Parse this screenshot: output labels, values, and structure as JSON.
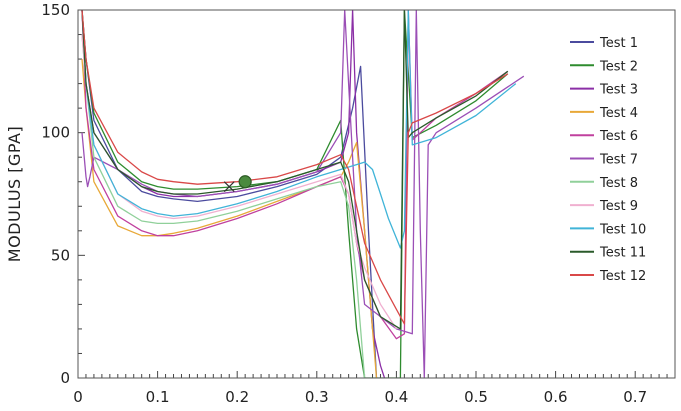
{
  "chart_data": {
    "type": "line",
    "title": "",
    "xlabel": "",
    "ylabel": "MODULUS [GPA]",
    "xlim": [
      0,
      0.75
    ],
    "ylim": [
      0,
      150
    ],
    "xticks": [
      "0",
      "0.1",
      "0.2",
      "0.3",
      "0.4",
      "0.5",
      "0.6",
      "0.7"
    ],
    "yticks": [
      "0",
      "50",
      "100",
      "150"
    ],
    "legend_position": "top-right",
    "marker": {
      "x": 0.21,
      "y": 80,
      "color": "#4a8a3e"
    },
    "cross_marker": {
      "x": 0.19,
      "y": 78
    },
    "series": [
      {
        "name": "Test 1",
        "color": "#4b4b9e",
        "x": [
          0.005,
          0.01,
          0.02,
          0.05,
          0.08,
          0.1,
          0.12,
          0.15,
          0.2,
          0.25,
          0.3,
          0.33,
          0.345,
          0.355,
          0.365,
          0.375
        ],
        "y": [
          150,
          130,
          105,
          85,
          76,
          74,
          73,
          72,
          74,
          78,
          83,
          90,
          110,
          127,
          60,
          0
        ]
      },
      {
        "name": "Test 2",
        "color": "#2e8b2e",
        "x": [
          0.005,
          0.01,
          0.02,
          0.05,
          0.08,
          0.1,
          0.12,
          0.15,
          0.2,
          0.25,
          0.3,
          0.33,
          0.34,
          0.35,
          0.36,
          0.405,
          0.41,
          0.42,
          0.45,
          0.5,
          0.54
        ],
        "y": [
          150,
          130,
          108,
          88,
          80,
          78,
          77,
          77,
          78,
          80,
          85,
          105,
          60,
          20,
          0,
          0,
          150,
          98,
          103,
          113,
          124
        ]
      },
      {
        "name": "Test 3",
        "color": "#8b2fa6",
        "x": [
          0.005,
          0.01,
          0.02,
          0.05,
          0.08,
          0.1,
          0.12,
          0.15,
          0.2,
          0.25,
          0.3,
          0.33,
          0.34,
          0.345,
          0.35,
          0.36,
          0.37,
          0.38,
          0.385
        ],
        "y": [
          150,
          120,
          100,
          85,
          78,
          75,
          74,
          74,
          76,
          79,
          84,
          88,
          100,
          150,
          100,
          60,
          20,
          5,
          0
        ]
      },
      {
        "name": "Test 4",
        "color": "#e8a838",
        "x": [
          0.005,
          0.01,
          0.02,
          0.05,
          0.08,
          0.1,
          0.12,
          0.15,
          0.2,
          0.25,
          0.3,
          0.33,
          0.34,
          0.35,
          0.36,
          0.37,
          0.375
        ],
        "y": [
          130,
          110,
          80,
          62,
          58,
          58,
          59,
          61,
          66,
          72,
          78,
          82,
          88,
          96,
          60,
          20,
          0
        ]
      },
      {
        "name": "Test 6",
        "color": "#c0409e",
        "x": [
          0.005,
          0.01,
          0.02,
          0.05,
          0.08,
          0.1,
          0.12,
          0.15,
          0.2,
          0.25,
          0.3,
          0.33,
          0.34,
          0.35,
          0.36,
          0.38,
          0.4,
          0.41,
          0.415,
          0.42,
          0.43,
          0.45,
          0.5,
          0.54
        ],
        "y": [
          150,
          110,
          85,
          66,
          60,
          58,
          58,
          60,
          65,
          71,
          78,
          82,
          75,
          55,
          40,
          25,
          16,
          18,
          150,
          97,
          100,
          106,
          116,
          125
        ]
      },
      {
        "name": "Test 7",
        "color": "#9b4fb6",
        "x": [
          0.005,
          0.01,
          0.012,
          0.015,
          0.02,
          0.05,
          0.08,
          0.1,
          0.12,
          0.15,
          0.2,
          0.25,
          0.3,
          0.33,
          0.335,
          0.34,
          0.345,
          0.35,
          0.36,
          0.4,
          0.42,
          0.425,
          0.43,
          0.435,
          0.44,
          0.45,
          0.5,
          0.56
        ],
        "y": [
          100,
          82,
          78,
          82,
          90,
          85,
          79,
          76,
          75,
          74,
          76,
          79,
          84,
          100,
          150,
          120,
          90,
          60,
          30,
          20,
          18,
          150,
          60,
          0,
          95,
          100,
          110,
          123
        ]
      },
      {
        "name": "Test 8",
        "color": "#90d09a",
        "x": [
          0.005,
          0.01,
          0.02,
          0.05,
          0.08,
          0.1,
          0.12,
          0.15,
          0.2,
          0.25,
          0.3,
          0.33,
          0.34,
          0.35,
          0.36
        ],
        "y": [
          140,
          120,
          90,
          70,
          64,
          63,
          63,
          64,
          68,
          73,
          78,
          80,
          70,
          40,
          0
        ]
      },
      {
        "name": "Test 9",
        "color": "#f0b0d0",
        "x": [
          0.005,
          0.01,
          0.02,
          0.05,
          0.08,
          0.1,
          0.12,
          0.15,
          0.2,
          0.25,
          0.3,
          0.33,
          0.34,
          0.35,
          0.36,
          0.38,
          0.4
        ],
        "y": [
          140,
          120,
          95,
          75,
          68,
          66,
          65,
          66,
          70,
          75,
          80,
          83,
          75,
          55,
          45,
          30,
          20
        ]
      },
      {
        "name": "Test 10",
        "color": "#40b4d8",
        "x": [
          0.005,
          0.01,
          0.02,
          0.05,
          0.08,
          0.1,
          0.12,
          0.15,
          0.2,
          0.25,
          0.3,
          0.35,
          0.36,
          0.37,
          0.38,
          0.39,
          0.405,
          0.41,
          0.415,
          0.42,
          0.45,
          0.5,
          0.55
        ],
        "y": [
          150,
          120,
          95,
          75,
          69,
          67,
          66,
          67,
          71,
          76,
          82,
          87,
          88,
          85,
          75,
          65,
          53,
          60,
          150,
          95,
          98,
          107,
          120
        ]
      },
      {
        "name": "Test 11",
        "color": "#2a5a2a",
        "x": [
          0.005,
          0.01,
          0.02,
          0.05,
          0.08,
          0.1,
          0.12,
          0.15,
          0.2,
          0.25,
          0.3,
          0.33,
          0.34,
          0.35,
          0.36,
          0.38,
          0.405,
          0.41,
          0.415,
          0.42,
          0.45,
          0.5,
          0.54
        ],
        "y": [
          150,
          120,
          100,
          85,
          78,
          76,
          75,
          75,
          77,
          80,
          85,
          88,
          80,
          60,
          40,
          25,
          20,
          150,
          98,
          100,
          106,
          115,
          125
        ]
      },
      {
        "name": "Test 12",
        "color": "#d94848",
        "x": [
          0.005,
          0.01,
          0.02,
          0.05,
          0.08,
          0.1,
          0.12,
          0.15,
          0.2,
          0.25,
          0.3,
          0.33,
          0.34,
          0.35,
          0.36,
          0.38,
          0.4,
          0.41,
          0.415,
          0.42,
          0.45,
          0.5,
          0.54
        ],
        "y": [
          150,
          130,
          110,
          92,
          84,
          81,
          80,
          79,
          80,
          82,
          87,
          91,
          85,
          70,
          55,
          40,
          28,
          22,
          100,
          104,
          108,
          116,
          124
        ]
      }
    ]
  }
}
